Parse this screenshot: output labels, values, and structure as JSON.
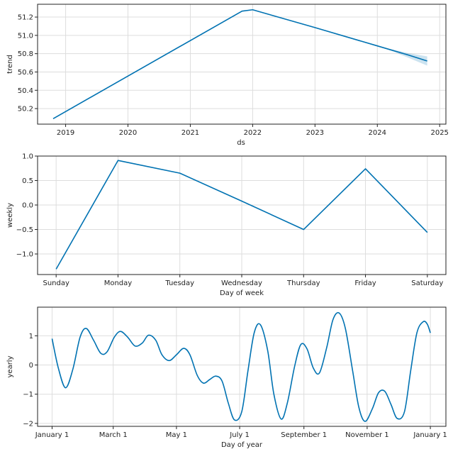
{
  "colors": {
    "line": "#0072B2",
    "band": "#0072B2",
    "grid": "#dddddd",
    "frame": "#222222"
  },
  "chart_data": [
    {
      "id": "trend",
      "type": "line",
      "title": "",
      "xlabel": "ds",
      "ylabel": "trend",
      "grid": true,
      "xlim": [
        2018.55,
        2025.1
      ],
      "ylim": [
        50.03,
        51.34
      ],
      "x_ticks": [
        2019,
        2020,
        2021,
        2022,
        2023,
        2024,
        2025
      ],
      "x_tick_labels": [
        "2019",
        "2020",
        "2021",
        "2022",
        "2023",
        "2024",
        "2025"
      ],
      "y_ticks": [
        50.2,
        50.4,
        50.6,
        50.8,
        51.0,
        51.2
      ],
      "y_tick_labels": [
        "50.2",
        "50.4",
        "50.6",
        "50.8",
        "51.0",
        "51.2"
      ],
      "series": [
        {
          "name": "trend",
          "x": [
            2018.8,
            2021.83,
            2022.0,
            2023.0,
            2024.0,
            2024.5,
            2024.8
          ],
          "y": [
            50.09,
            51.265,
            51.28,
            51.085,
            50.885,
            50.785,
            50.72
          ]
        }
      ],
      "uncertainty": {
        "x": [
          2024.0,
          2024.25,
          2024.5,
          2024.8
        ],
        "lower": [
          50.885,
          50.825,
          50.755,
          50.67
        ],
        "upper": [
          50.885,
          50.845,
          50.805,
          50.77
        ]
      }
    },
    {
      "id": "weekly",
      "type": "line",
      "title": "",
      "xlabel": "Day of week",
      "ylabel": "weekly",
      "grid": true,
      "categories": [
        "Sunday",
        "Monday",
        "Tuesday",
        "Wednesday",
        "Thursday",
        "Friday",
        "Saturday"
      ],
      "ylim": [
        -1.42,
        1.0
      ],
      "y_ticks": [
        -1.0,
        -0.5,
        0.0,
        0.5,
        1.0
      ],
      "y_tick_labels": [
        "−1.0",
        "−0.5",
        "0.0",
        "0.5",
        "1.0"
      ],
      "series": [
        {
          "name": "weekly",
          "values": [
            -1.31,
            0.91,
            0.65,
            0.08,
            -0.5,
            0.74,
            -0.56
          ]
        }
      ]
    },
    {
      "id": "yearly",
      "type": "line",
      "title": "",
      "xlabel": "Day of year",
      "ylabel": "yearly",
      "grid": true,
      "xlim": [
        -14,
        380
      ],
      "ylim": [
        -2.1,
        1.98
      ],
      "x_ticks": [
        0,
        59,
        120,
        181,
        243,
        304,
        365
      ],
      "x_tick_labels": [
        "January 1",
        "March 1",
        "May 1",
        "July 1",
        "September 1",
        "November 1",
        "January 1"
      ],
      "y_ticks": [
        -2,
        -1,
        0,
        1
      ],
      "y_tick_labels": [
        "−2",
        "−1",
        "0",
        "1"
      ],
      "series": [
        {
          "name": "yearly",
          "x": [
            0,
            6,
            13,
            20,
            27,
            33,
            40,
            47,
            53,
            60,
            66,
            73,
            80,
            87,
            93,
            100,
            106,
            113,
            120,
            127,
            133,
            140,
            146,
            152,
            158,
            164,
            170,
            176,
            183,
            189,
            195,
            201,
            208,
            214,
            221,
            227,
            234,
            240,
            246,
            252,
            258,
            265,
            271,
            277,
            283,
            290,
            296,
            302,
            309,
            315,
            321,
            327,
            333,
            340,
            346,
            352,
            358,
            362,
            365
          ],
          "y": [
            0.9,
            -0.1,
            -0.78,
            -0.15,
            0.95,
            1.25,
            0.85,
            0.4,
            0.45,
            0.95,
            1.15,
            0.95,
            0.65,
            0.75,
            1.02,
            0.85,
            0.35,
            0.15,
            0.35,
            0.57,
            0.35,
            -0.35,
            -0.62,
            -0.5,
            -0.38,
            -0.55,
            -1.3,
            -1.88,
            -1.6,
            -0.2,
            1.1,
            1.38,
            0.5,
            -1.0,
            -1.85,
            -1.3,
            -0.05,
            0.7,
            0.55,
            -0.1,
            -0.27,
            0.6,
            1.55,
            1.78,
            1.25,
            -0.2,
            -1.45,
            -1.93,
            -1.5,
            -0.95,
            -0.9,
            -1.35,
            -1.83,
            -1.6,
            -0.2,
            1.1,
            1.48,
            1.4,
            1.1
          ]
        }
      ]
    }
  ]
}
